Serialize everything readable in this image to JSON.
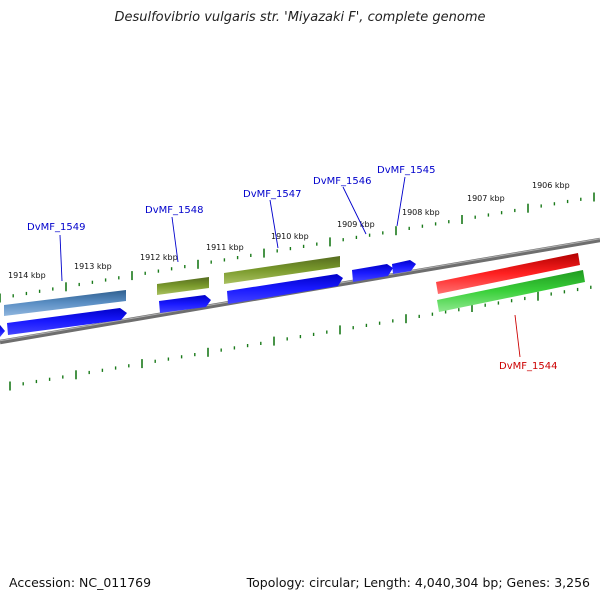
{
  "title": "Desulfovibrio vulgaris str. 'Miyazaki F', complete genome",
  "footer": {
    "accession": "Accession: NC_011769",
    "topology": "Topology: circular; Length: 4,040,304 bp; Genes: 3,256"
  },
  "colors": {
    "backbone": "#777777",
    "ticks": "#1a7a1a",
    "cds": "#1010ee",
    "gene_label": "#0000cc",
    "highlight_label": "#cc0000",
    "steelblue_feature": "#4a7fb3",
    "olive_feature": "#6b8e23",
    "red_feature": "#ee1111",
    "green_feature": "#33cc33"
  },
  "tick_labels": [
    "1914 kbp",
    "1913 kbp",
    "1912 kbp",
    "1911 kbp",
    "1910 kbp",
    "1909 kbp",
    "1908 kbp",
    "1907 kbp",
    "1906 kbp"
  ],
  "genes": [
    {
      "label": "DvMF_1549",
      "kind": "normal"
    },
    {
      "label": "DvMF_1548",
      "kind": "normal"
    },
    {
      "label": "DvMF_1547",
      "kind": "normal"
    },
    {
      "label": "DvMF_1546",
      "kind": "normal"
    },
    {
      "label": "DvMF_1545",
      "kind": "normal"
    },
    {
      "label": "DvMF_1544",
      "kind": "highlight"
    }
  ]
}
